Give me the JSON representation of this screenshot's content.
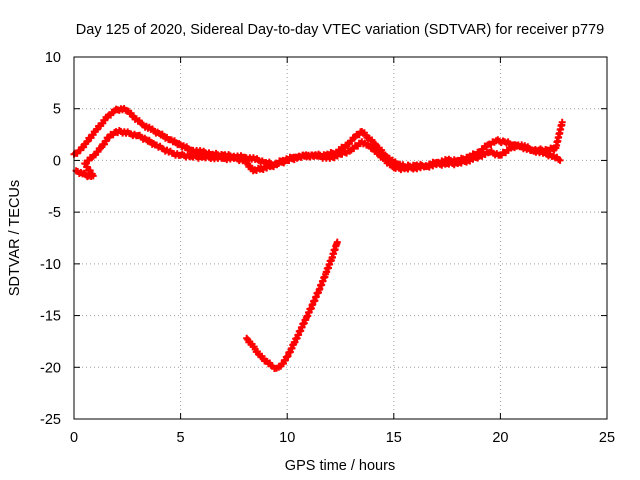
{
  "chart_data": {
    "type": "scatter",
    "title": "Day 125 of 2020, Sidereal Day-to-day VTEC variation (SDTVAR) for receiver p779",
    "xlabel": "GPS time / hours",
    "ylabel": "SDTVAR / TECUs",
    "xlim": [
      0,
      25
    ],
    "ylim": [
      -25,
      10
    ],
    "xticks": [
      0,
      5,
      10,
      15,
      20,
      25
    ],
    "yticks": [
      -25,
      -20,
      -15,
      -10,
      -5,
      0,
      5,
      10
    ],
    "grid": true,
    "marker": "+",
    "color": "#ff0000",
    "series": [
      {
        "name": "upper-track",
        "points": [
          [
            0.0,
            0.6
          ],
          [
            0.3,
            1.0
          ],
          [
            0.6,
            1.8
          ],
          [
            1.0,
            2.8
          ],
          [
            1.3,
            3.6
          ],
          [
            1.6,
            4.3
          ],
          [
            1.9,
            4.8
          ],
          [
            2.2,
            5.0
          ],
          [
            2.5,
            4.8
          ],
          [
            2.8,
            4.2
          ],
          [
            3.2,
            3.5
          ],
          [
            3.6,
            3.0
          ],
          [
            4.0,
            2.6
          ],
          [
            4.5,
            2.0
          ],
          [
            5.0,
            1.5
          ],
          [
            5.5,
            1.0
          ],
          [
            6.0,
            0.8
          ],
          [
            6.5,
            0.6
          ],
          [
            7.0,
            0.5
          ],
          [
            7.5,
            0.4
          ],
          [
            8.0,
            0.3
          ],
          [
            8.5,
            0.1
          ],
          [
            9.0,
            -0.2
          ],
          [
            9.4,
            -0.4
          ],
          [
            9.8,
            0.0
          ],
          [
            10.3,
            0.3
          ],
          [
            10.8,
            0.4
          ],
          [
            11.3,
            0.5
          ],
          [
            11.8,
            0.5
          ],
          [
            12.3,
            0.8
          ],
          [
            12.8,
            1.5
          ],
          [
            13.2,
            2.3
          ],
          [
            13.5,
            2.8
          ],
          [
            13.8,
            2.2
          ],
          [
            14.2,
            1.4
          ],
          [
            14.6,
            0.5
          ],
          [
            15.0,
            -0.2
          ],
          [
            15.5,
            -0.6
          ],
          [
            16.0,
            -0.5
          ],
          [
            16.5,
            -0.5
          ],
          [
            17.0,
            -0.2
          ],
          [
            17.5,
            0.0
          ],
          [
            18.0,
            0.0
          ],
          [
            18.5,
            0.3
          ],
          [
            19.0,
            0.8
          ],
          [
            19.4,
            1.5
          ],
          [
            19.8,
            1.9
          ],
          [
            20.2,
            1.8
          ],
          [
            20.6,
            1.5
          ],
          [
            21.0,
            1.3
          ],
          [
            21.4,
            1.0
          ],
          [
            21.8,
            1.0
          ],
          [
            22.2,
            1.0
          ],
          [
            22.6,
            1.2
          ],
          [
            22.9,
            3.7
          ]
        ]
      },
      {
        "name": "lower-track",
        "points": [
          [
            0.1,
            -1.0
          ],
          [
            0.4,
            -1.3
          ],
          [
            0.7,
            -1.5
          ],
          [
            0.9,
            -1.5
          ],
          [
            0.5,
            -0.3
          ],
          [
            0.9,
            0.4
          ],
          [
            1.3,
            1.3
          ],
          [
            1.6,
            2.2
          ],
          [
            1.9,
            2.7
          ],
          [
            2.2,
            2.8
          ],
          [
            2.6,
            2.6
          ],
          [
            3.0,
            2.4
          ],
          [
            3.4,
            2.0
          ],
          [
            3.8,
            1.5
          ],
          [
            4.2,
            1.1
          ],
          [
            4.6,
            0.7
          ],
          [
            5.0,
            0.5
          ],
          [
            5.5,
            0.4
          ],
          [
            6.0,
            0.3
          ],
          [
            6.5,
            0.3
          ],
          [
            7.0,
            0.2
          ],
          [
            7.5,
            0.2
          ],
          [
            8.0,
            0.0
          ],
          [
            8.4,
            -1.0
          ],
          [
            8.8,
            -0.8
          ],
          [
            9.2,
            -0.6
          ],
          [
            9.6,
            -0.3
          ],
          [
            10.0,
            0.0
          ],
          [
            10.5,
            0.3
          ],
          [
            11.0,
            0.5
          ],
          [
            11.5,
            0.4
          ],
          [
            12.0,
            0.2
          ],
          [
            12.5,
            0.6
          ],
          [
            13.0,
            1.0
          ],
          [
            13.5,
            1.8
          ],
          [
            14.0,
            1.2
          ],
          [
            14.5,
            0.2
          ],
          [
            15.0,
            -0.7
          ],
          [
            15.5,
            -0.8
          ],
          [
            16.0,
            -0.7
          ],
          [
            16.5,
            -0.6
          ],
          [
            17.0,
            -0.4
          ],
          [
            17.5,
            -0.3
          ],
          [
            18.0,
            -0.3
          ],
          [
            18.5,
            0.0
          ],
          [
            19.0,
            0.4
          ],
          [
            19.5,
            0.8
          ],
          [
            20.0,
            0.5
          ],
          [
            20.5,
            1.2
          ],
          [
            21.0,
            1.5
          ],
          [
            21.5,
            1.0
          ],
          [
            22.0,
            0.7
          ],
          [
            22.5,
            0.4
          ],
          [
            22.8,
            0.0
          ]
        ]
      },
      {
        "name": "deep-track",
        "points": [
          [
            8.1,
            -17.2
          ],
          [
            8.4,
            -18.0
          ],
          [
            8.7,
            -18.8
          ],
          [
            9.0,
            -19.4
          ],
          [
            9.3,
            -19.9
          ],
          [
            9.5,
            -20.1
          ],
          [
            9.7,
            -19.9
          ],
          [
            10.0,
            -19.0
          ],
          [
            10.3,
            -17.8
          ],
          [
            10.6,
            -16.5
          ],
          [
            10.9,
            -15.2
          ],
          [
            11.2,
            -13.9
          ],
          [
            11.5,
            -12.5
          ],
          [
            11.8,
            -11.0
          ],
          [
            12.1,
            -9.4
          ],
          [
            12.3,
            -8.2
          ],
          [
            12.35,
            -7.9
          ]
        ]
      }
    ]
  }
}
